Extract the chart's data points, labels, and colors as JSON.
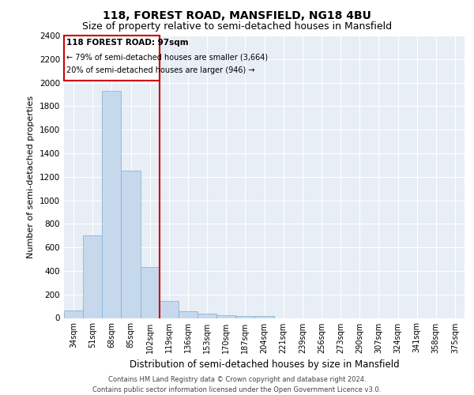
{
  "title1": "118, FOREST ROAD, MANSFIELD, NG18 4BU",
  "title2": "Size of property relative to semi-detached houses in Mansfield",
  "xlabel": "Distribution of semi-detached houses by size in Mansfield",
  "ylabel": "Number of semi-detached properties",
  "footer": "Contains HM Land Registry data © Crown copyright and database right 2024.\nContains public sector information licensed under the Open Government Licence v3.0.",
  "categories": [
    "34sqm",
    "51sqm",
    "68sqm",
    "85sqm",
    "102sqm",
    "119sqm",
    "136sqm",
    "153sqm",
    "170sqm",
    "187sqm",
    "204sqm",
    "221sqm",
    "239sqm",
    "256sqm",
    "273sqm",
    "290sqm",
    "307sqm",
    "324sqm",
    "341sqm",
    "358sqm",
    "375sqm"
  ],
  "values": [
    65,
    700,
    1930,
    1250,
    430,
    145,
    60,
    40,
    25,
    20,
    20,
    0,
    0,
    0,
    0,
    0,
    0,
    0,
    0,
    0,
    0
  ],
  "bar_color": "#c6d9ec",
  "bar_edge_color": "#7aadd4",
  "subject_label": "118 FOREST ROAD: 97sqm",
  "annotation_line1": "← 79% of semi-detached houses are smaller (3,664)",
  "annotation_line2": "20% of semi-detached houses are larger (946) →",
  "box_color": "#cc0000",
  "ylim": [
    0,
    2400
  ],
  "yticks": [
    0,
    200,
    400,
    600,
    800,
    1000,
    1200,
    1400,
    1600,
    1800,
    2000,
    2200,
    2400
  ],
  "bg_color": "#e8eef5",
  "grid_color": "#ffffff",
  "title1_fontsize": 10,
  "title2_fontsize": 9,
  "xlabel_fontsize": 8.5,
  "ylabel_fontsize": 8,
  "footer_fontsize": 6
}
